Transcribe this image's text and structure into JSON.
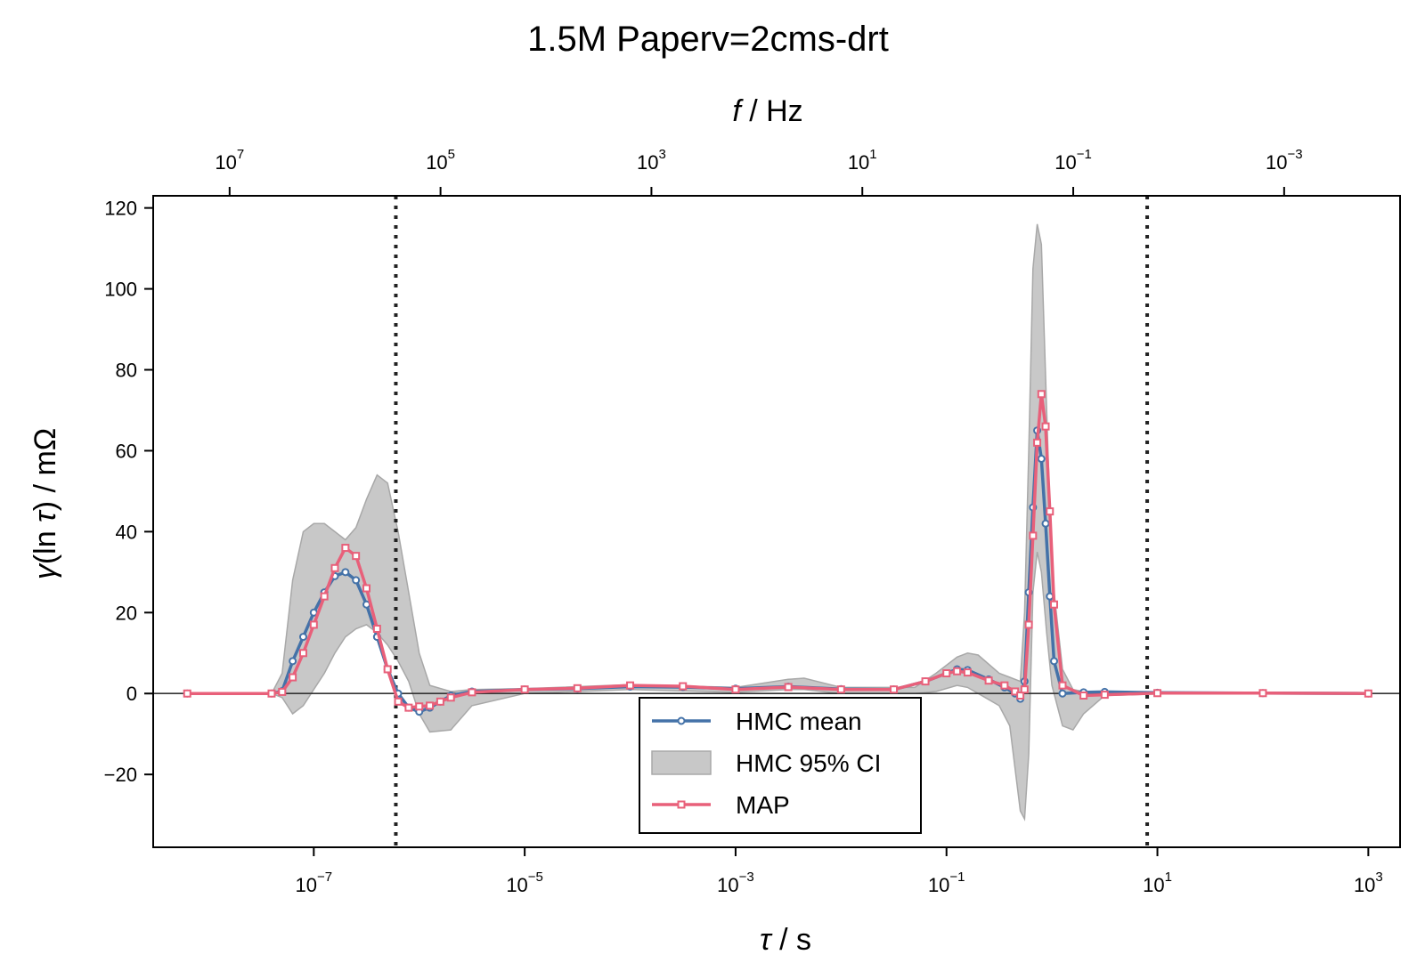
{
  "chart_data": {
    "type": "line",
    "title": "1.5M Paperv=2cms-drt",
    "xlabel": {
      "symbol": "τ",
      "unit": " / s"
    },
    "x2label": {
      "symbol": "f",
      "unit": " / Hz"
    },
    "ylabel": {
      "symbol": "γ",
      "inner": "(ln ",
      "inner_symbol": "τ",
      "rest": ") / mΩ"
    },
    "x_scale": "log",
    "xlim": [
      3e-09,
      2000
    ],
    "ylim": [
      -38,
      123
    ],
    "x_ticks": [
      {
        "value": 1e-07,
        "base": "10",
        "exp": "−7"
      },
      {
        "value": 1e-05,
        "base": "10",
        "exp": "−5"
      },
      {
        "value": 0.001,
        "base": "10",
        "exp": "−3"
      },
      {
        "value": 0.1,
        "base": "10",
        "exp": "−1"
      },
      {
        "value": 10,
        "base": "10",
        "exp": "1"
      },
      {
        "value": 1000,
        "base": "10",
        "exp": "3"
      }
    ],
    "x2_ticks": [
      {
        "freq": 10000000.0,
        "base": "10",
        "exp": "7"
      },
      {
        "freq": 100000.0,
        "base": "10",
        "exp": "5"
      },
      {
        "freq": 1000.0,
        "base": "10",
        "exp": "3"
      },
      {
        "freq": 10.0,
        "base": "10",
        "exp": "1"
      },
      {
        "freq": 0.1,
        "base": "10",
        "exp": "−1"
      },
      {
        "freq": 0.001,
        "base": "10",
        "exp": "−3"
      }
    ],
    "y_ticks": [
      {
        "value": 120,
        "label": "120"
      },
      {
        "value": 100,
        "label": "100"
      },
      {
        "value": 80,
        "label": "80"
      },
      {
        "value": 60,
        "label": "60"
      },
      {
        "value": 40,
        "label": "40"
      },
      {
        "value": 20,
        "label": "20"
      },
      {
        "value": 0,
        "label": "0"
      },
      {
        "value": -20,
        "label": "−20"
      }
    ],
    "vlines_tau": [
      6e-07,
      8
    ],
    "zero_line": true,
    "grid": false,
    "legend": {
      "placement": "lower-center",
      "entries": [
        {
          "key": "hmc_mean",
          "label": "HMC mean"
        },
        {
          "key": "ci",
          "label": "HMC 95% CI"
        },
        {
          "key": "map",
          "label": "MAP"
        }
      ]
    },
    "colors": {
      "hmc_mean": "#4472a8",
      "map": "#e8607a",
      "ci": "#c8c8c8",
      "ci_edge": "#a8a8a8",
      "vline": "#222222",
      "zero": "#333333"
    },
    "ci_band": {
      "log_tau": [
        -8.2,
        -7.4,
        -7.3,
        -7.2,
        -7.1,
        -7.0,
        -6.9,
        -6.8,
        -6.7,
        -6.6,
        -6.5,
        -6.4,
        -6.3,
        -6.2,
        -6.1,
        -6.0,
        -5.9,
        -5.7,
        -5.5,
        -5.0,
        -4.0,
        -3.0,
        -2.5,
        -2.35,
        -2.0,
        -1.3,
        -1.1,
        -0.9,
        -0.8,
        -0.7,
        -0.5,
        -0.4,
        -0.3,
        -0.26,
        -0.22,
        -0.18,
        -0.14,
        -0.1,
        -0.05,
        0.0,
        0.1,
        0.2,
        0.3,
        0.5,
        1.0,
        3.0
      ],
      "upper": [
        0,
        0,
        5,
        28,
        40,
        42,
        42,
        40,
        38,
        41,
        48,
        54,
        52,
        40,
        25,
        10,
        2,
        0.5,
        1,
        1.2,
        2.2,
        1.5,
        3.5,
        3.8,
        1.5,
        1.5,
        5,
        9,
        10,
        9.5,
        5,
        4,
        3,
        20,
        60,
        105,
        116,
        111,
        70,
        30,
        6,
        1,
        0.5,
        0.3,
        0.1,
        0
      ],
      "lower": [
        0,
        0,
        -1,
        -5,
        -3,
        1,
        5,
        10,
        14,
        16,
        17,
        15,
        12,
        8,
        3,
        -5,
        -9.5,
        -9,
        -3,
        0,
        1,
        0.3,
        1,
        1,
        0,
        0,
        0.5,
        2,
        1.5,
        0,
        -3,
        -8,
        -29,
        -31,
        -15,
        25,
        35,
        30,
        15,
        2,
        -8,
        -9,
        -5,
        -0.5,
        -0.1,
        0
      ]
    },
    "series": [
      {
        "key": "hmc_mean",
        "name": "HMC mean",
        "x_log_tau": [
          -8.2,
          -7.4,
          -7.3,
          -7.2,
          -7.1,
          -7.0,
          -6.9,
          -6.8,
          -6.7,
          -6.6,
          -6.5,
          -6.4,
          -6.3,
          -6.2,
          -6.1,
          -6.0,
          -5.9,
          -5.8,
          -5.7,
          -5.5,
          -5.0,
          -4.5,
          -4.0,
          -3.5,
          -3.0,
          -2.5,
          -2.0,
          -1.5,
          -1.2,
          -1.0,
          -0.9,
          -0.8,
          -0.6,
          -0.45,
          -0.35,
          -0.3,
          -0.26,
          -0.22,
          -0.18,
          -0.14,
          -0.1,
          -0.06,
          -0.02,
          0.02,
          0.1,
          0.3,
          0.5,
          1.0,
          2.0,
          3.0
        ],
        "y": [
          0,
          0,
          0.6,
          8,
          14,
          20,
          25,
          29,
          30,
          28,
          22,
          14,
          6,
          0,
          -3.5,
          -4.5,
          -3.5,
          -2,
          -0.5,
          0.5,
          1,
          1.2,
          1.7,
          1.6,
          1.2,
          1.7,
          1.1,
          1,
          3,
          5,
          6,
          5.8,
          3.5,
          1.5,
          0,
          -1.3,
          3,
          25,
          46,
          65,
          58,
          42,
          24,
          8,
          0,
          0.3,
          0.4,
          0.2,
          0.1,
          0
        ]
      },
      {
        "key": "map",
        "name": "MAP",
        "x_log_tau": [
          -8.2,
          -7.4,
          -7.3,
          -7.2,
          -7.1,
          -7.0,
          -6.9,
          -6.8,
          -6.7,
          -6.6,
          -6.5,
          -6.4,
          -6.3,
          -6.2,
          -6.1,
          -6.0,
          -5.9,
          -5.8,
          -5.7,
          -5.5,
          -5.0,
          -4.5,
          -4.0,
          -3.5,
          -3.0,
          -2.5,
          -2.0,
          -1.5,
          -1.2,
          -1.0,
          -0.9,
          -0.8,
          -0.6,
          -0.45,
          -0.35,
          -0.3,
          -0.26,
          -0.22,
          -0.18,
          -0.14,
          -0.1,
          -0.06,
          -0.02,
          0.02,
          0.1,
          0.3,
          0.5,
          1.0,
          2.0,
          3.0
        ],
        "y": [
          0,
          0,
          0.4,
          4,
          10,
          17,
          24,
          31,
          36,
          34,
          26,
          16,
          6,
          -2,
          -3.5,
          -3.2,
          -3,
          -2,
          -1,
          0.3,
          1,
          1.3,
          2,
          1.8,
          1,
          1.6,
          1,
          1,
          3,
          5,
          5.5,
          5.2,
          3.2,
          2,
          0.5,
          -0.5,
          1,
          17,
          39,
          62,
          74,
          66,
          45,
          22,
          2,
          -0.5,
          -0.3,
          0.1,
          0.1,
          0
        ]
      }
    ]
  }
}
